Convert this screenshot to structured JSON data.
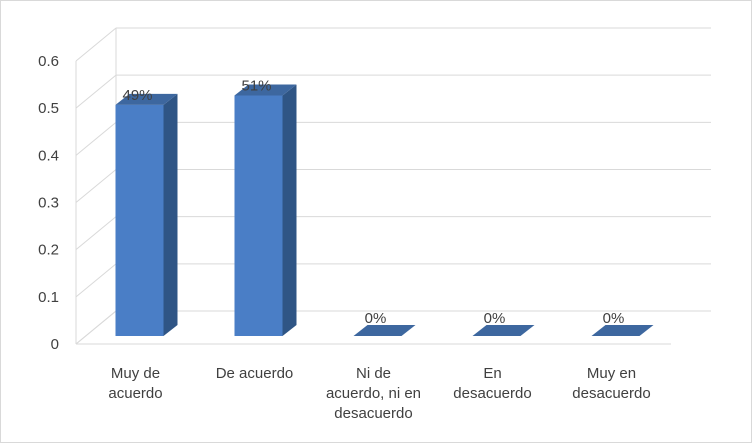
{
  "chart_data": {
    "type": "bar",
    "style": "3d-column",
    "categories": [
      [
        "Muy de",
        "acuerdo"
      ],
      [
        "De acuerdo"
      ],
      [
        "Ni de",
        "acuerdo, ni en",
        "desacuerdo"
      ],
      [
        "En",
        "desacuerdo"
      ],
      [
        "Muy en",
        "desacuerdo"
      ]
    ],
    "values": [
      0.49,
      0.51,
      0,
      0,
      0
    ],
    "data_labels": [
      "49%",
      "51%",
      "0%",
      "0%",
      "0%"
    ],
    "yticks": [
      "0",
      "0.1",
      "0.2",
      "0.3",
      "0.4",
      "0.5",
      "0.6"
    ],
    "ylim": [
      0,
      0.6
    ],
    "grid": true,
    "legend": "none",
    "colors": {
      "front": "#4a7ec6",
      "side": "#2f5585",
      "top": "#3d679f",
      "grid": "#d9d9d9"
    }
  }
}
